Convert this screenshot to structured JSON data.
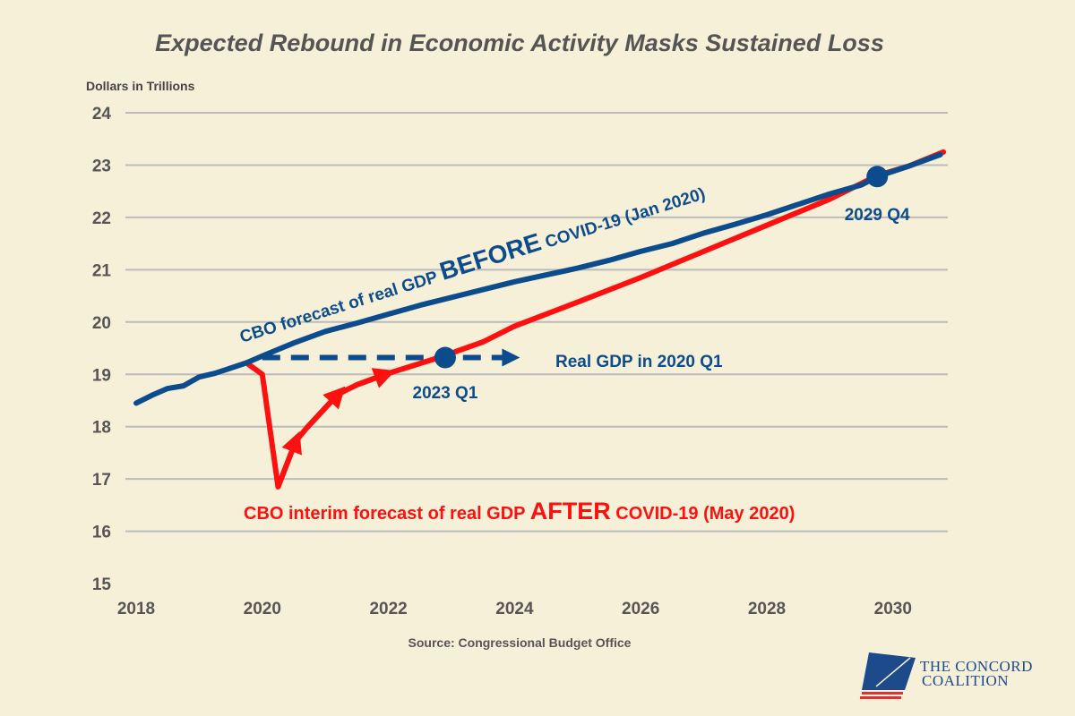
{
  "chart_data": {
    "type": "line",
    "title": "Expected Rebound in Economic Activity Masks Sustained Loss",
    "ylabel": "Dollars in Trillions",
    "xlabel": "",
    "source": "Source: Congressional Budget Office",
    "xlim": [
      2018,
      2031
    ],
    "ylim": [
      15,
      24
    ],
    "xticks": [
      2018,
      2020,
      2022,
      2024,
      2026,
      2028,
      2030
    ],
    "yticks": [
      15,
      16,
      17,
      18,
      19,
      20,
      21,
      22,
      23,
      24
    ],
    "grid": true,
    "series": [
      {
        "name": "CBO forecast of real GDP BEFORE COVID-19 (Jan 2020)",
        "color": "#0d4c8c",
        "x": [
          2018.0,
          2018.25,
          2018.5,
          2018.75,
          2019.0,
          2019.25,
          2019.5,
          2019.75,
          2020.0,
          2020.5,
          2021.0,
          2021.5,
          2022.0,
          2022.5,
          2023.0,
          2023.5,
          2024.0,
          2024.5,
          2025.0,
          2025.5,
          2026.0,
          2026.5,
          2027.0,
          2027.5,
          2028.0,
          2028.5,
          2029.0,
          2029.5,
          2029.75,
          2030.25,
          2030.75
        ],
        "y": [
          18.45,
          18.6,
          18.73,
          18.78,
          18.95,
          19.02,
          19.12,
          19.22,
          19.35,
          19.6,
          19.82,
          19.98,
          20.15,
          20.32,
          20.47,
          20.62,
          20.77,
          20.9,
          21.03,
          21.18,
          21.35,
          21.5,
          21.7,
          21.87,
          22.05,
          22.25,
          22.45,
          22.62,
          22.78,
          22.98,
          23.2
        ]
      },
      {
        "name": "CBO interim forecast of real GDP AFTER COVID-19 (May 2020)",
        "color": "#ff1010",
        "x": [
          2019.75,
          2020.0,
          2020.25,
          2020.53,
          2020.7,
          2021.2,
          2021.5,
          2021.95,
          2022.8,
          2023.5,
          2024.0,
          2025.0,
          2026.0,
          2027.0,
          2028.0,
          2029.0,
          2029.75,
          2030.25,
          2030.8
        ],
        "y": [
          19.22,
          19.0,
          16.85,
          17.72,
          17.97,
          18.62,
          18.8,
          19.0,
          19.32,
          19.62,
          19.92,
          20.38,
          20.85,
          21.35,
          21.85,
          22.35,
          22.8,
          22.98,
          23.25
        ]
      }
    ],
    "annotations": [
      {
        "text": "2023 Q1",
        "x": 2022.9,
        "y": 19.32
      },
      {
        "text": "2029 Q4",
        "x": 2029.75,
        "y": 22.78
      },
      {
        "text": "Real GDP in 2020 Q1",
        "x_from": 2020.0,
        "x_to": 2024.0,
        "y": 19.32
      }
    ],
    "labels": {
      "before_pre": "CBO forecast of real GDP ",
      "before_em": "BEFORE",
      "before_post": " COVID-19 (Jan 2020)",
      "after_pre": "CBO interim forecast of real GDP ",
      "after_em": "AFTER",
      "after_post": " COVID-19 (May 2020)"
    }
  },
  "logo": {
    "line1": "The Concord",
    "line2": "Coalition"
  }
}
